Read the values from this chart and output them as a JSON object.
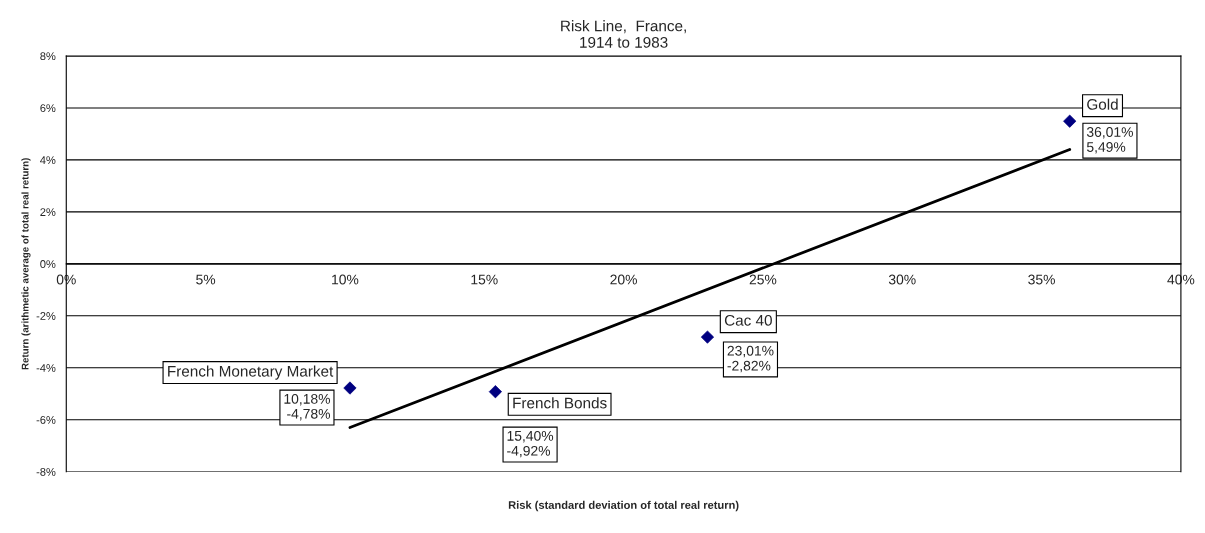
{
  "chart_data": {
    "type": "scatter",
    "title": "Risk Line,  France,\n1914 to 1983",
    "xlabel": "Risk (standard deviation of total real return)",
    "ylabel": "Return (arithmetic average of total real return)",
    "series": [
      {
        "color": "#000080",
        "marker": "diamond",
        "x": [
          10.18,
          15.4,
          23.01,
          36.01
        ],
        "values": [
          -4.78,
          -4.92,
          -2.82,
          5.49
        ],
        "value_labels": [
          "10,18%\n-4,78%",
          "15,40%\n-4,92%",
          "23,01%\n-2,82%",
          "36,01%\n5,49%"
        ]
      },
      {
        "type": "line",
        "color": "#000000",
        "marker": "none",
        "line_style": "solid",
        "x": [
          10.18,
          36.01
        ],
        "values": [
          -6.3,
          4.4
        ]
      }
    ],
    "annotations": [
      {
        "text": "French Monetary Market",
        "x": 10.18,
        "y": -4.78
      },
      {
        "text": "French Bonds",
        "x": 15.4,
        "y": -4.92
      },
      {
        "text": "Cac 40",
        "x": 23.01,
        "y": -2.82
      },
      {
        "text": "Gold",
        "x": 36.01,
        "y": 5.49
      }
    ],
    "xlim": [
      0,
      40
    ],
    "xticks": [
      {
        "value": 0,
        "label": "0%"
      },
      {
        "value": 5,
        "label": "5%"
      },
      {
        "value": 10,
        "label": "10%"
      },
      {
        "value": 15,
        "label": "15%"
      },
      {
        "value": 20,
        "label": "20%"
      },
      {
        "value": 25,
        "label": "25%"
      },
      {
        "value": 30,
        "label": "30%"
      },
      {
        "value": 35,
        "label": "35%"
      },
      {
        "value": 40,
        "label": "40%"
      }
    ],
    "ylim": [
      -8,
      8
    ],
    "yticks": [
      {
        "value": -8,
        "label": "-8%"
      },
      {
        "value": -6,
        "label": "-6%"
      },
      {
        "value": -4,
        "label": "-4%"
      },
      {
        "value": -2,
        "label": "-2%"
      },
      {
        "value": 0,
        "label": "0%"
      },
      {
        "value": 2,
        "label": "2%"
      },
      {
        "value": 4,
        "label": "4%"
      },
      {
        "value": 6,
        "label": "6%"
      },
      {
        "value": 8,
        "label": "8%"
      }
    ],
    "grid": "y",
    "legend": false
  }
}
